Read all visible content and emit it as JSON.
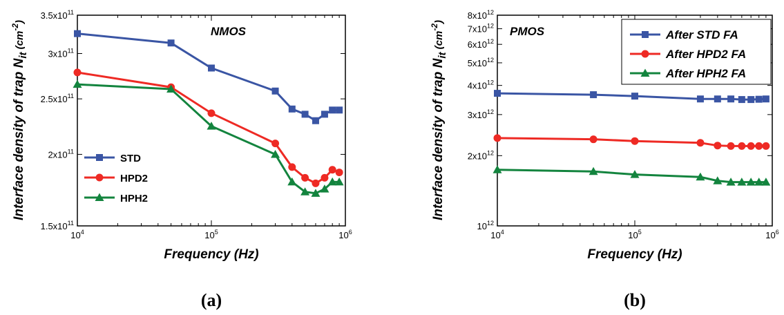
{
  "chart_data": [
    {
      "type": "line",
      "title": "NMOS",
      "xlabel": "Frequency (Hz)",
      "ylabel": "Interface density of trap N",
      "ylabel_sub": "it",
      "ylabel_unit": " (cm",
      "ylabel_unit_exp": "-2",
      "ylabel_unit_close": ")",
      "xscale": "log",
      "yscale": "log",
      "xlim": [
        10000,
        1000000
      ],
      "ylim": [
        150000000000,
        350000000000
      ],
      "xticks": [
        {
          "value": 10000,
          "base": "10",
          "exp": "4"
        },
        {
          "value": 100000,
          "base": "10",
          "exp": "5"
        },
        {
          "value": 1000000,
          "base": "10",
          "exp": "6"
        }
      ],
      "yticks": [
        {
          "value": 150000000000,
          "base": "1.5x10",
          "exp": "11"
        },
        {
          "value": 200000000000,
          "base": "2x10",
          "exp": "11"
        },
        {
          "value": 250000000000,
          "base": "2.5x10",
          "exp": "11"
        },
        {
          "value": 300000000000,
          "base": "3x10",
          "exp": "11"
        },
        {
          "value": 350000000000,
          "base": "3.5x10",
          "exp": "11"
        }
      ],
      "x": [
        10000,
        50000,
        100000,
        300000,
        400000,
        500000,
        600000,
        700000,
        800000,
        900000
      ],
      "legend_position": "lower-left",
      "series": [
        {
          "name": "STD",
          "color": "#3a55a4",
          "marker": "square",
          "values": [
            325000000000,
            313000000000,
            283000000000,
            258000000000,
            240000000000,
            235000000000,
            229000000000,
            235000000000,
            239000000000,
            239000000000
          ]
        },
        {
          "name": "HPD2",
          "color": "#ee2a24",
          "marker": "circle",
          "values": [
            278000000000,
            262000000000,
            236000000000,
            209000000000,
            190000000000,
            182000000000,
            178000000000,
            182000000000,
            188000000000,
            186000000000
          ]
        },
        {
          "name": "HPH2",
          "color": "#13843e",
          "marker": "triangle",
          "values": [
            265000000000,
            260000000000,
            224000000000,
            200000000000,
            179000000000,
            172000000000,
            171000000000,
            174000000000,
            179000000000,
            179000000000
          ]
        }
      ]
    },
    {
      "type": "line",
      "title": "PMOS",
      "xlabel": "Frequency (Hz)",
      "ylabel": "Interface density of trap N",
      "ylabel_sub": "it",
      "ylabel_unit": " (cm",
      "ylabel_unit_exp": "-2",
      "ylabel_unit_close": ")",
      "xscale": "log",
      "yscale": "log",
      "xlim": [
        10000,
        1000000
      ],
      "ylim": [
        1000000000000,
        8000000000000
      ],
      "xticks": [
        {
          "value": 10000,
          "base": "10",
          "exp": "4"
        },
        {
          "value": 100000,
          "base": "10",
          "exp": "5"
        },
        {
          "value": 1000000,
          "base": "10",
          "exp": "6"
        }
      ],
      "yticks": [
        {
          "value": 1000000000000,
          "base": "10",
          "exp": "12"
        },
        {
          "value": 2000000000000,
          "base": "2x10",
          "exp": "12"
        },
        {
          "value": 3000000000000,
          "base": "3x10",
          "exp": "12"
        },
        {
          "value": 4000000000000,
          "base": "4x10",
          "exp": "12"
        },
        {
          "value": 5000000000000,
          "base": "5x10",
          "exp": "12"
        },
        {
          "value": 6000000000000,
          "base": "6x10",
          "exp": "12"
        },
        {
          "value": 7000000000000,
          "base": "7x10",
          "exp": "12"
        },
        {
          "value": 8000000000000,
          "base": "8x10",
          "exp": "12"
        }
      ],
      "x": [
        10000,
        50000,
        100000,
        300000,
        400000,
        500000,
        600000,
        700000,
        800000,
        900000
      ],
      "legend_position": "top-right",
      "series": [
        {
          "name": "After STD FA",
          "color": "#3a55a4",
          "marker": "square",
          "values": [
            3700000000000,
            3650000000000,
            3600000000000,
            3500000000000,
            3500000000000,
            3500000000000,
            3480000000000,
            3480000000000,
            3490000000000,
            3500000000000
          ]
        },
        {
          "name": "After HPD2 FA",
          "color": "#ee2a24",
          "marker": "circle",
          "values": [
            2380000000000,
            2350000000000,
            2310000000000,
            2270000000000,
            2210000000000,
            2200000000000,
            2200000000000,
            2200000000000,
            2200000000000,
            2200000000000
          ]
        },
        {
          "name": "After HPH2 FA",
          "color": "#13843e",
          "marker": "triangle",
          "values": [
            1740000000000,
            1710000000000,
            1660000000000,
            1620000000000,
            1560000000000,
            1540000000000,
            1540000000000,
            1540000000000,
            1540000000000,
            1540000000000
          ]
        }
      ]
    }
  ],
  "captions": [
    "(a)",
    "(b)"
  ]
}
